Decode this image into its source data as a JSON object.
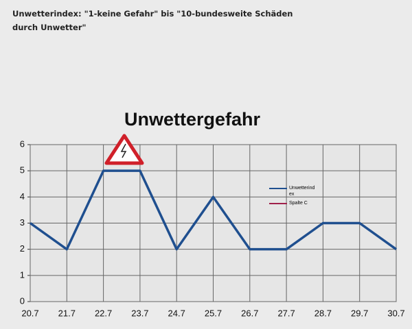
{
  "header": {
    "text": "Unwetterindex: \"1-keine Gefahr\" bis \"10-bundesweite Schäden durch Unwetter\""
  },
  "chart_data": {
    "type": "line",
    "title": "Unwettergefahr",
    "categories": [
      "20.7",
      "21.7",
      "22.7",
      "23.7",
      "24.7",
      "25.7",
      "26.7",
      "27.7",
      "28.7",
      "29.7",
      "30.7"
    ],
    "series": [
      {
        "name": "Unwetterindex",
        "color": "#1f4f8f",
        "values": [
          3,
          2,
          5,
          5,
          2,
          4,
          2,
          2,
          3,
          3,
          2
        ]
      },
      {
        "name": "Spalte C",
        "color": "#a0204a",
        "values": [
          null,
          null,
          null,
          null,
          null,
          null,
          null,
          null,
          null,
          null,
          null
        ]
      }
    ],
    "ylim": [
      0,
      6
    ],
    "yticks": [
      0,
      1,
      2,
      3,
      4,
      5,
      6
    ],
    "grid": true
  }
}
